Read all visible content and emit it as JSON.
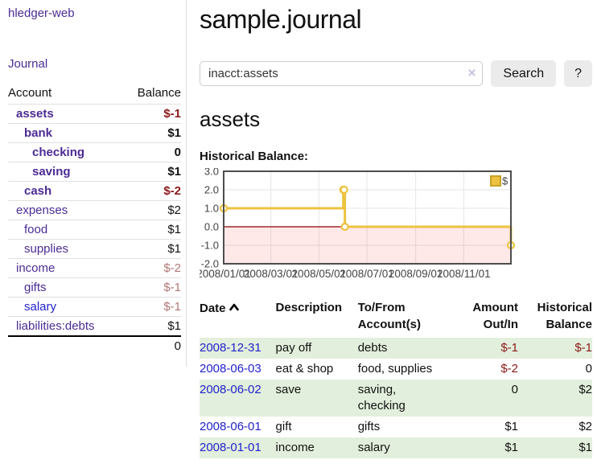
{
  "app": {
    "title": "hledger-web"
  },
  "colors": {
    "link_purple": "#4c2b94",
    "link_blue": "#2222cc",
    "negative_strong": "#8c1a1a",
    "negative_soft": "#b37676",
    "row_highlight_green": "#e2efdc",
    "chart_line_yellow": "#edc240",
    "chart_zero_line": "#8b0000"
  },
  "sidebar": {
    "journal_link": "Journal",
    "accounts_table": {
      "headers": {
        "account": "Account",
        "balance": "Balance"
      },
      "rows": [
        {
          "name": "assets",
          "balance": "$-1",
          "indent": 0,
          "bold": true,
          "neg": "strong"
        },
        {
          "name": "bank",
          "balance": "$1",
          "indent": 1,
          "bold": true,
          "neg": null
        },
        {
          "name": "checking",
          "balance": "0",
          "indent": 2,
          "bold": true,
          "neg": null
        },
        {
          "name": "saving",
          "balance": "$1",
          "indent": 2,
          "bold": true,
          "neg": null
        },
        {
          "name": "cash",
          "balance": "$-2",
          "indent": 1,
          "bold": true,
          "neg": "strong"
        },
        {
          "name": "expenses",
          "balance": "$2",
          "indent": 0,
          "bold": false,
          "neg": null
        },
        {
          "name": "food",
          "balance": "$1",
          "indent": 1,
          "bold": false,
          "neg": null
        },
        {
          "name": "supplies",
          "balance": "$1",
          "indent": 1,
          "bold": false,
          "neg": null
        },
        {
          "name": "income",
          "balance": "$-2",
          "indent": 0,
          "bold": false,
          "neg": "soft"
        },
        {
          "name": "gifts",
          "balance": "$-1",
          "indent": 1,
          "bold": false,
          "neg": "soft"
        },
        {
          "name": "salary",
          "balance": "$-1",
          "indent": 1,
          "bold": false,
          "neg": "soft",
          "link": "blue"
        },
        {
          "name": "liabilities:debts",
          "balance": "$1",
          "indent": 0,
          "bold": false,
          "neg": null
        }
      ],
      "total": "0"
    }
  },
  "main": {
    "title": "sample.journal",
    "search": {
      "value": "inacct:assets",
      "clear_icon": "×",
      "search_button": "Search",
      "help_button": "?"
    },
    "account_heading": "assets",
    "chart_label": "Historical Balance:",
    "register_table": {
      "headers": {
        "date": "Date",
        "description": "Description",
        "tofrom_line1": "To/From",
        "tofrom_line2": "Account(s)",
        "amount_line1": "Amount",
        "amount_line2": "Out/In",
        "balance_line1": "Historical",
        "balance_line2": "Balance"
      },
      "rows": [
        {
          "date": "2008-12-31",
          "description": "pay off",
          "accounts": "debts",
          "amount": "$-1",
          "balance": "$-1",
          "amount_neg": true,
          "balance_neg": true,
          "highlight": true
        },
        {
          "date": "2008-06-03",
          "description": "eat & shop",
          "accounts": "food, supplies",
          "amount": "$-2",
          "balance": "0",
          "amount_neg": true,
          "balance_neg": false,
          "highlight": false
        },
        {
          "date": "2008-06-02",
          "description": "save",
          "accounts": "saving, checking",
          "amount": "0",
          "balance": "$2",
          "amount_neg": false,
          "balance_neg": false,
          "highlight": true
        },
        {
          "date": "2008-06-01",
          "description": "gift",
          "accounts": "gifts",
          "amount": "$1",
          "balance": "$2",
          "amount_neg": false,
          "balance_neg": false,
          "highlight": false
        },
        {
          "date": "2008-01-01",
          "description": "income",
          "accounts": "salary",
          "amount": "$1",
          "balance": "$1",
          "amount_neg": false,
          "balance_neg": false,
          "highlight": true
        }
      ]
    }
  },
  "chart_data": {
    "type": "line",
    "title": "Historical Balance:",
    "step": true,
    "series": [
      {
        "name": "$",
        "color": "#edc240",
        "points": [
          [
            "2008-01-01",
            1
          ],
          [
            "2008-06-01",
            2
          ],
          [
            "2008-06-02",
            2
          ],
          [
            "2008-06-03",
            0
          ],
          [
            "2008-12-31",
            -1
          ]
        ]
      }
    ],
    "x_range": [
      "2008-01-01",
      "2008-12-31"
    ],
    "ylim": [
      -2,
      3
    ],
    "y_ticks": [
      "3.0",
      "2.0",
      "1.0",
      "0.0",
      "-1.0",
      "-2.0"
    ],
    "x_ticks": [
      "2008/01/01",
      "2008/03/01",
      "2008/05/01",
      "2008/07/01",
      "2008/09/01",
      "2008/11/01"
    ],
    "grid": true,
    "legend": "$",
    "legend_position": "top-right",
    "zero_line_color": "#8b0000",
    "negative_fill": "rgba(255,0,0,0.09)"
  }
}
